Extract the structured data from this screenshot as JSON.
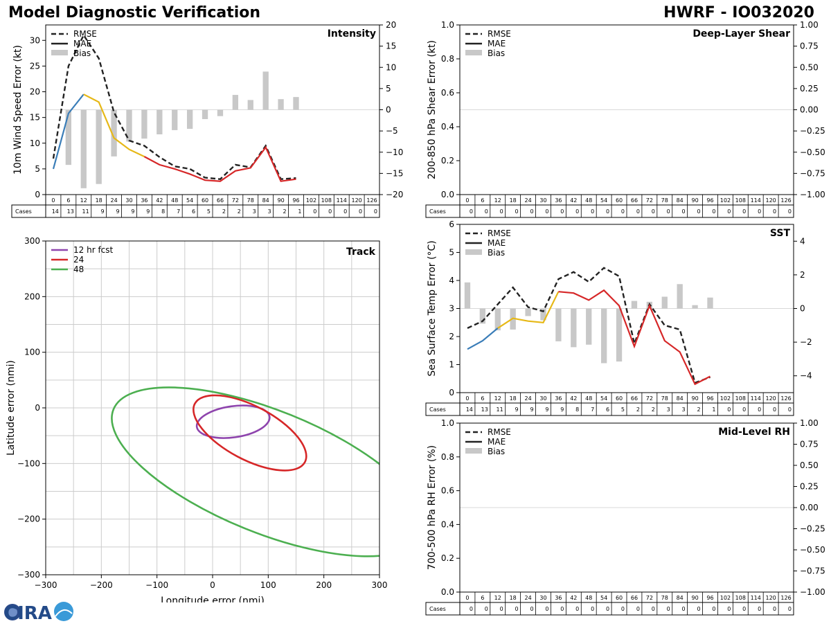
{
  "header": {
    "title": "Model Diagnostic Verification",
    "model": "HWRF - IO032020"
  },
  "logo": {
    "text": "CIRA"
  },
  "legend_labels": {
    "rmse": "RMSE",
    "mae": "MAE",
    "bias": "Bias"
  },
  "table": {
    "cases_label": "Cases"
  },
  "colors": {
    "rmse": "#222222",
    "mae_early": "#3a7db8",
    "mae_mid": "#e6b817",
    "mae_late": "#d62728",
    "bias": "#c8c8c8",
    "track_12": "#8e44ad",
    "track_24": "#d62728",
    "track_48": "#4caf50",
    "grid": "#cccccc"
  },
  "chart_data": [
    {
      "id": "intensity",
      "type": "line",
      "title": "Intensity",
      "ylabel": "10m Wind Speed Error (kt)",
      "ylim": [
        0,
        33
      ],
      "yticks": [
        0,
        5,
        10,
        15,
        20,
        25,
        30
      ],
      "y2lim": [
        -20,
        20
      ],
      "y2ticks": [
        -20,
        -15,
        -10,
        -5,
        0,
        5,
        10,
        15,
        20
      ],
      "lead_times": [
        "0",
        "6",
        "12",
        "18",
        "24",
        "30",
        "36",
        "42",
        "48",
        "54",
        "60",
        "66",
        "72",
        "78",
        "84",
        "90",
        "96",
        "102",
        "108",
        "114",
        "120",
        "126"
      ],
      "cases": [
        14,
        13,
        11,
        9,
        9,
        9,
        9,
        8,
        7,
        6,
        5,
        2,
        2,
        3,
        3,
        2,
        1,
        0,
        0,
        0,
        0,
        0
      ],
      "rmse": [
        7,
        25,
        31,
        26.5,
        16,
        10.5,
        9.5,
        7.3,
        5.5,
        5,
        3.3,
        3,
        5.8,
        5.3,
        9.5,
        3,
        3.2
      ],
      "mae": [
        5,
        15.8,
        19.5,
        18,
        11,
        8.8,
        7.4,
        5.8,
        5,
        4,
        2.8,
        2.6,
        4.6,
        5.2,
        9.2,
        2.6,
        3
      ],
      "bias": [
        null,
        -13,
        -18.5,
        -17.5,
        -11,
        -7.5,
        -6.8,
        -5.8,
        -4.8,
        -4.5,
        -2.2,
        -1.5,
        3.5,
        2.3,
        9,
        2.5,
        3
      ]
    },
    {
      "id": "shear",
      "type": "line",
      "title": "Deep-Layer Shear",
      "ylabel": "200-850 hPa Shear Error (kt)",
      "ylim": [
        0,
        1
      ],
      "yticks": [
        0.0,
        0.2,
        0.4,
        0.6,
        0.8,
        1.0
      ],
      "y2lim": [
        -1,
        1
      ],
      "y2ticks": [
        -1.0,
        -0.75,
        -0.5,
        -0.25,
        0.0,
        0.25,
        0.5,
        0.75,
        1.0
      ],
      "lead_times": [
        "0",
        "6",
        "12",
        "18",
        "24",
        "30",
        "36",
        "42",
        "48",
        "54",
        "60",
        "66",
        "72",
        "78",
        "84",
        "90",
        "96",
        "102",
        "108",
        "114",
        "120",
        "126"
      ],
      "cases": [
        0,
        0,
        0,
        0,
        0,
        0,
        0,
        0,
        0,
        0,
        0,
        0,
        0,
        0,
        0,
        0,
        0,
        0,
        0,
        0,
        0,
        0
      ],
      "rmse": [],
      "mae": [],
      "bias": []
    },
    {
      "id": "sst",
      "type": "line",
      "title": "SST",
      "ylabel": "Sea Surface Temp Error (°C)",
      "ylim": [
        0,
        6
      ],
      "yticks": [
        0,
        1,
        2,
        3,
        4,
        5,
        6
      ],
      "y2lim": [
        -5,
        5
      ],
      "y2ticks": [
        -4,
        -2,
        0,
        2,
        4
      ],
      "lead_times": [
        "0",
        "6",
        "12",
        "18",
        "24",
        "30",
        "36",
        "42",
        "48",
        "54",
        "60",
        "66",
        "72",
        "78",
        "84",
        "90",
        "96",
        "102",
        "108",
        "114",
        "120",
        "126"
      ],
      "cases": [
        14,
        13,
        11,
        9,
        9,
        9,
        9,
        8,
        7,
        6,
        5,
        2,
        2,
        3,
        3,
        2,
        1,
        0,
        0,
        0,
        0,
        0
      ],
      "rmse": [
        2.3,
        2.55,
        3.15,
        3.75,
        3.05,
        2.9,
        4.05,
        4.3,
        3.95,
        4.45,
        4.15,
        1.75,
        3.15,
        2.4,
        2.25,
        0.35,
        0.55
      ],
      "mae": [
        1.55,
        1.85,
        2.3,
        2.65,
        2.55,
        2.5,
        3.6,
        3.55,
        3.3,
        3.65,
        3.1,
        1.65,
        3.1,
        1.85,
        1.45,
        0.3,
        0.58
      ],
      "bias": [
        1.55,
        -0.9,
        -1.3,
        -1.25,
        -0.45,
        -0.7,
        -1.95,
        -2.3,
        -2.15,
        -3.25,
        -3.15,
        0.45,
        0.4,
        0.7,
        1.45,
        0.2,
        0.65
      ]
    },
    {
      "id": "rh",
      "type": "line",
      "title": "Mid-Level RH",
      "ylabel": "700-500 hPa RH Error (%)",
      "ylim": [
        0,
        1
      ],
      "yticks": [
        0.0,
        0.2,
        0.4,
        0.6,
        0.8,
        1.0
      ],
      "y2lim": [
        -1,
        1
      ],
      "y2ticks": [
        -1.0,
        -0.75,
        -0.5,
        -0.25,
        0.0,
        0.25,
        0.5,
        0.75,
        1.0
      ],
      "lead_times": [
        "0",
        "6",
        "12",
        "18",
        "24",
        "30",
        "36",
        "42",
        "48",
        "54",
        "60",
        "66",
        "72",
        "78",
        "84",
        "90",
        "96",
        "102",
        "108",
        "114",
        "120",
        "126"
      ],
      "cases": [
        0,
        0,
        0,
        0,
        0,
        0,
        0,
        0,
        0,
        0,
        0,
        0,
        0,
        0,
        0,
        0,
        0,
        0,
        0,
        0,
        0,
        0
      ],
      "rmse": [],
      "mae": [],
      "bias": []
    },
    {
      "id": "track",
      "type": "ellipse",
      "title": "Track",
      "xlabel": "Longitude error (nmi)",
      "ylabel": "Latitude error (nmi)",
      "xlim": [
        -300,
        300
      ],
      "ylim": [
        -300,
        300
      ],
      "xticks": [
        -300,
        -200,
        -100,
        0,
        100,
        200,
        300
      ],
      "yticks": [
        -300,
        -200,
        -100,
        0,
        100,
        200,
        300
      ],
      "legend": [
        "12 hr fcst",
        "24",
        "48"
      ],
      "ellipses": [
        {
          "name": "12 hr fcst",
          "cx": 37,
          "cy": -25,
          "rx": 66,
          "ry": 28,
          "rotation": 8
        },
        {
          "name": "24",
          "cx": 67,
          "cy": -45,
          "rx": 112,
          "ry": 48,
          "rotation": -28
        },
        {
          "name": "48",
          "cx": 100,
          "cy": -115,
          "rx": 300,
          "ry": 110,
          "rotation": -22
        }
      ]
    }
  ]
}
